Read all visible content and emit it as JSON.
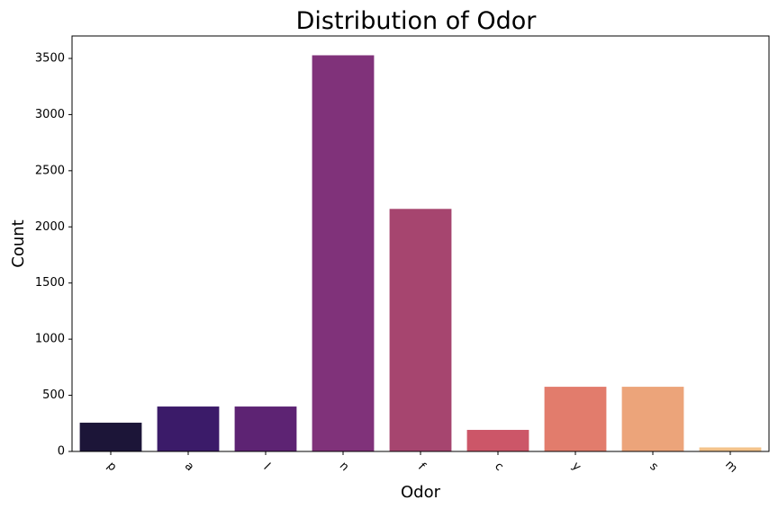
{
  "chart_data": {
    "type": "bar",
    "title": "Distribution of Odor",
    "xlabel": "Odor",
    "ylabel": "Count",
    "categories": [
      "p",
      "a",
      "l",
      "n",
      "f",
      "c",
      "y",
      "s",
      "m"
    ],
    "values": [
      256,
      400,
      400,
      3528,
      2160,
      192,
      576,
      576,
      36
    ],
    "colors": [
      "#1c1538",
      "#3b1b69",
      "#5d2373",
      "#80327a",
      "#a6456f",
      "#cc5668",
      "#e27c6c",
      "#eca47a",
      "#f3c38b"
    ],
    "ylim": [
      0,
      3700
    ],
    "yticks": [
      0,
      500,
      1000,
      1500,
      2000,
      2500,
      3000,
      3500
    ],
    "ytick_labels": [
      "0",
      "500",
      "1000",
      "1500",
      "2000",
      "2500",
      "3000",
      "3500"
    ],
    "grid": false,
    "legend": "none"
  }
}
